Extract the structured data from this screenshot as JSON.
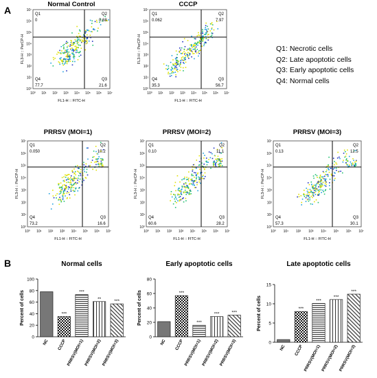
{
  "panel_a_label": "A",
  "panel_b_label": "B",
  "legend": [
    "Q1:  Necrotic cells",
    "Q2:  Late apoptotic cells",
    "Q3:  Early apoptotic cells",
    "Q4:  Normal cells"
  ],
  "flow_axes": {
    "xlabel": "FL1-H :: FITC-H",
    "ylabel": "FL3-H :: PerCP-H",
    "ticks": [
      "10⁰",
      "10¹",
      "10²",
      "10³",
      "10⁴",
      "10⁵",
      "10⁶",
      "10⁷"
    ]
  },
  "flow_plots": [
    {
      "title": "Normal Control",
      "quadrants": {
        "Q1": "0",
        "Q2": "0.68",
        "Q3": "21.6",
        "Q4": "77.7"
      }
    },
    {
      "title": "CCCP",
      "quadrants": {
        "Q1": "0.062",
        "Q2": "7.97",
        "Q3": "56.7",
        "Q4": "35.3"
      }
    },
    {
      "title": "PRRSV (MOI=1)",
      "quadrants": {
        "Q1": "0.050",
        "Q2": "10.2",
        "Q3": "16.6",
        "Q4": "73.2"
      }
    },
    {
      "title": "PRRSV (MOI=2)",
      "quadrants": {
        "Q1": "0.10",
        "Q2": "11.1",
        "Q3": "28.2",
        "Q4": "60.6"
      }
    },
    {
      "title": "PRRSV (MOI=3)",
      "quadrants": {
        "Q1": "0.13",
        "Q2": "12.5",
        "Q3": "30.1",
        "Q4": "57.3"
      }
    }
  ],
  "chart_data": [
    {
      "type": "bar",
      "title": "Normal cells",
      "ylabel": "Percent of cells",
      "categories": [
        "NC",
        "CCCP",
        "PRRSV(MOI=1)",
        "PRRSV(MOI=2)",
        "PRRSV(MOI=3)"
      ],
      "values": [
        78,
        35,
        73,
        61,
        57
      ],
      "significance": [
        "",
        "***",
        "***",
        "**",
        "***"
      ],
      "ylim": [
        0,
        100
      ],
      "yticks": [
        0,
        20,
        40,
        60,
        80,
        100
      ]
    },
    {
      "type": "bar",
      "title": "Early apoptotic cells",
      "ylabel": "Percent of cells",
      "categories": [
        "NC",
        "CCCP",
        "PRRSV(MOI=1)",
        "PRRSV(MOI=2)",
        "PRRSV(MOI=3)"
      ],
      "values": [
        21,
        57,
        16,
        28,
        30
      ],
      "significance": [
        "",
        "***",
        "***",
        "***",
        "***"
      ],
      "ylim": [
        0,
        80
      ],
      "yticks": [
        0,
        20,
        40,
        60,
        80
      ]
    },
    {
      "type": "bar",
      "title": "Late apoptotic cells",
      "ylabel": "Percent of cells",
      "categories": [
        "NC",
        "CCCP",
        "PRRSV(MOI=1)",
        "PRRSV(MOI=2)",
        "PRRSV(MOI=3)"
      ],
      "values": [
        0.7,
        8,
        10.1,
        11.1,
        12.5
      ],
      "significance": [
        "",
        "***",
        "***",
        "***",
        "***"
      ],
      "ylim": [
        0,
        15
      ],
      "yticks": [
        0,
        5,
        10,
        15
      ]
    }
  ]
}
